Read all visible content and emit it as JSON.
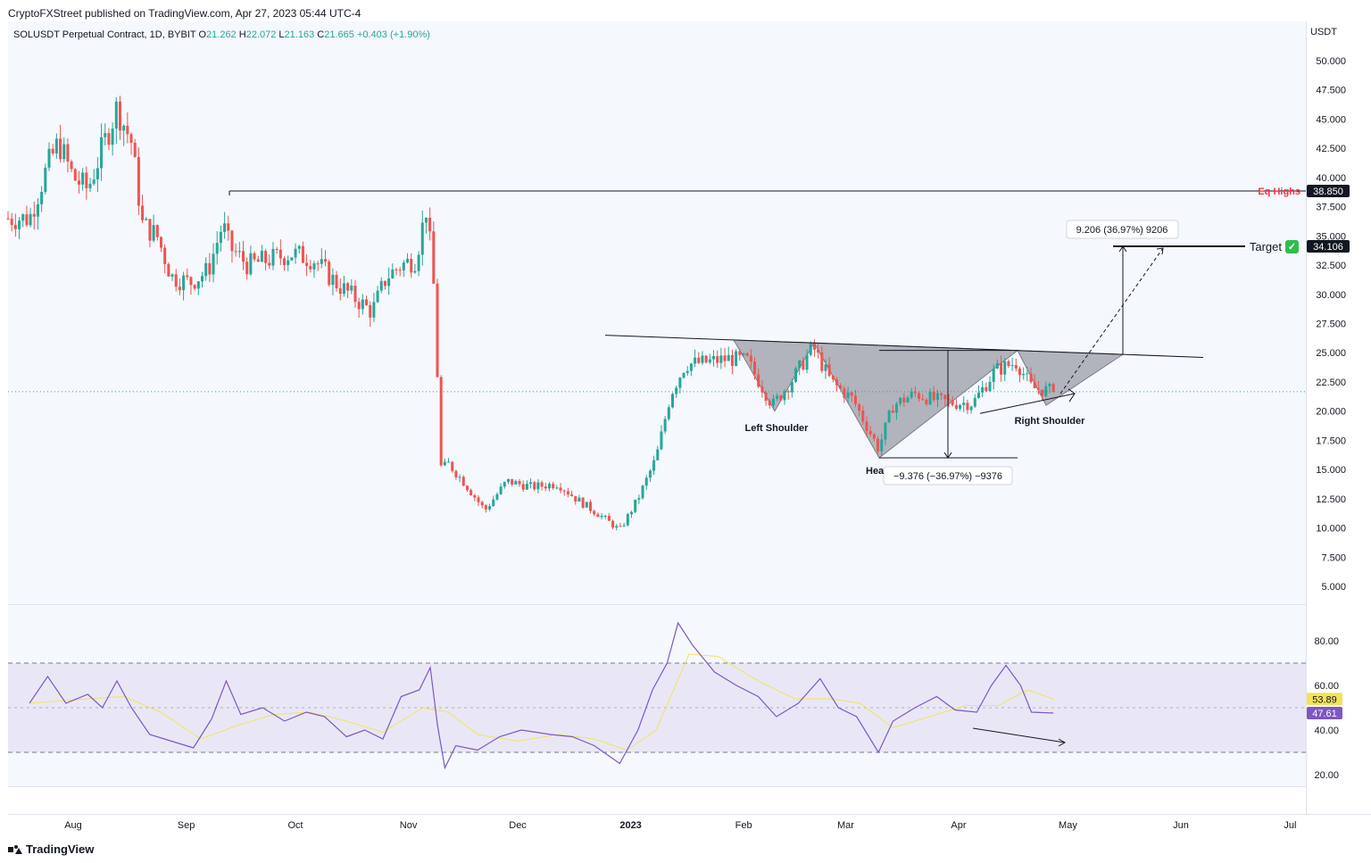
{
  "header": {
    "publisher_line": "CryptoFXStreet published on TradingView.com, Apr 27, 2023 05:44 UTC-4"
  },
  "legend": {
    "symbol": "SOLUSDT Perpetual Contract, 1D, BYBIT",
    "open_label": "O",
    "open": "21.262",
    "high_label": "H",
    "high": "22.072",
    "low_label": "L",
    "low": "21.163",
    "close_label": "C",
    "close": "21.665",
    "change": "+0.403 (+1.90%)"
  },
  "currency": "USDT",
  "labels": {
    "eq_highs": "Eq Highs",
    "eq_highs_price": "38.850",
    "target": "Target",
    "target_check": "✅",
    "target_price": "34.106",
    "measure_up": "9.206 (36.97%) 9206",
    "measure_down": "−9.376 (−36.97%) −9376",
    "left_shoulder": "Left Shoulder",
    "head": "Hea",
    "right_shoulder": "Right Shoulder",
    "rsi_value": "47.61",
    "rsi_ma_value": "53.89"
  },
  "colors": {
    "up": "#26a69a",
    "down": "#ef5350",
    "rsi": "#7e57c2",
    "rsi_ma": "#f2e35b",
    "eq_highs": "#f23645",
    "target_check": "#2ebd4e"
  },
  "footer": {
    "brand": "TradingView"
  },
  "chart_data": [
    {
      "type": "candlestick",
      "title": "SOLUSDT Perpetual Contract, 1D, BYBIT",
      "y_axis_label": "USDT",
      "x_ticks": [
        "Aug",
        "Sep",
        "Oct",
        "Nov",
        "Dec",
        "2023",
        "Feb",
        "Mar",
        "Apr",
        "May",
        "Jun",
        "Jul"
      ],
      "y_ticks": [
        "50.000",
        "47.500",
        "45.000",
        "42.500",
        "40.000",
        "37.500",
        "35.000",
        "32.500",
        "30.000",
        "27.500",
        "25.000",
        "22.500",
        "20.000",
        "17.500",
        "15.000",
        "12.500",
        "10.000",
        "7.500",
        "5.000"
      ],
      "ylim": [
        2.5,
        52.5
      ],
      "last_close": 21.665,
      "key_levels": {
        "eq_highs": 38.85,
        "target": 34.106,
        "neckline_start": 26.5,
        "neckline_end": 24.6,
        "head_low": 16.0
      },
      "approx_closes": [
        {
          "date": "2022-07-20",
          "close": 36.5
        },
        {
          "date": "2022-07-25",
          "close": 41.0
        },
        {
          "date": "2022-07-28",
          "close": 43.0
        },
        {
          "date": "2022-08-01",
          "close": 40.0
        },
        {
          "date": "2022-08-05",
          "close": 39.0
        },
        {
          "date": "2022-08-09",
          "close": 42.5
        },
        {
          "date": "2022-08-13",
          "close": 46.0
        },
        {
          "date": "2022-08-17",
          "close": 43.0
        },
        {
          "date": "2022-08-20",
          "close": 36.0
        },
        {
          "date": "2022-08-24",
          "close": 35.0
        },
        {
          "date": "2022-08-28",
          "close": 31.5
        },
        {
          "date": "2022-09-02",
          "close": 31.0
        },
        {
          "date": "2022-09-07",
          "close": 32.0
        },
        {
          "date": "2022-09-11",
          "close": 36.0
        },
        {
          "date": "2022-09-13",
          "close": 34.0
        },
        {
          "date": "2022-09-18",
          "close": 32.5
        },
        {
          "date": "2022-09-24",
          "close": 33.0
        },
        {
          "date": "2022-09-30",
          "close": 33.5
        },
        {
          "date": "2022-10-06",
          "close": 33.0
        },
        {
          "date": "2022-10-12",
          "close": 31.0
        },
        {
          "date": "2022-10-18",
          "close": 29.5
        },
        {
          "date": "2022-10-22",
          "close": 28.5
        },
        {
          "date": "2022-10-26",
          "close": 31.5
        },
        {
          "date": "2022-10-30",
          "close": 32.5
        },
        {
          "date": "2022-11-03",
          "close": 33.0
        },
        {
          "date": "2022-11-06",
          "close": 37.5
        },
        {
          "date": "2022-11-08",
          "close": 30.5
        },
        {
          "date": "2022-11-10",
          "close": 15.0
        },
        {
          "date": "2022-11-12",
          "close": 15.5
        },
        {
          "date": "2022-11-16",
          "close": 14.0
        },
        {
          "date": "2022-11-22",
          "close": 11.5
        },
        {
          "date": "2022-11-28",
          "close": 14.0
        },
        {
          "date": "2022-12-05",
          "close": 13.5
        },
        {
          "date": "2022-12-12",
          "close": 13.8
        },
        {
          "date": "2022-12-17",
          "close": 12.5
        },
        {
          "date": "2022-12-24",
          "close": 11.0
        },
        {
          "date": "2022-12-29",
          "close": 9.8
        },
        {
          "date": "2023-01-03",
          "close": 12.5
        },
        {
          "date": "2023-01-08",
          "close": 16.0
        },
        {
          "date": "2023-01-12",
          "close": 21.5
        },
        {
          "date": "2023-01-16",
          "close": 24.0
        },
        {
          "date": "2023-01-22",
          "close": 24.2
        },
        {
          "date": "2023-01-28",
          "close": 24.5
        },
        {
          "date": "2023-02-02",
          "close": 24.3
        },
        {
          "date": "2023-02-09",
          "close": 20.5
        },
        {
          "date": "2023-02-15",
          "close": 23.0
        },
        {
          "date": "2023-02-20",
          "close": 25.5
        },
        {
          "date": "2023-02-25",
          "close": 22.5
        },
        {
          "date": "2023-03-03",
          "close": 21.0
        },
        {
          "date": "2023-03-10",
          "close": 16.8
        },
        {
          "date": "2023-03-14",
          "close": 20.5
        },
        {
          "date": "2023-03-20",
          "close": 21.5
        },
        {
          "date": "2023-03-25",
          "close": 21.0
        },
        {
          "date": "2023-03-30",
          "close": 20.7
        },
        {
          "date": "2023-04-05",
          "close": 20.7
        },
        {
          "date": "2023-04-11",
          "close": 23.5
        },
        {
          "date": "2023-04-17",
          "close": 24.2
        },
        {
          "date": "2023-04-21",
          "close": 22.0
        },
        {
          "date": "2023-04-27",
          "close": 21.665
        }
      ]
    },
    {
      "type": "line",
      "title": "RSI",
      "y_ticks": [
        "80.00",
        "60.00",
        "40.00",
        "20.00"
      ],
      "ylim": [
        15,
        87
      ],
      "bands": {
        "upper": 70,
        "middle": 50,
        "lower": 30
      },
      "series": [
        {
          "name": "",
          "last_value": 47.61,
          "color": "#7e57c2",
          "values": [
            {
              "date": "2022-07-20",
              "value": 52
            },
            {
              "date": "2022-07-25",
              "value": 64
            },
            {
              "date": "2022-07-30",
              "value": 52
            },
            {
              "date": "2022-08-05",
              "value": 56
            },
            {
              "date": "2022-08-09",
              "value": 50
            },
            {
              "date": "2022-08-13",
              "value": 62
            },
            {
              "date": "2022-08-17",
              "value": 50
            },
            {
              "date": "2022-08-22",
              "value": 38
            },
            {
              "date": "2022-08-28",
              "value": 35
            },
            {
              "date": "2022-09-03",
              "value": 32
            },
            {
              "date": "2022-09-08",
              "value": 45
            },
            {
              "date": "2022-09-12",
              "value": 62
            },
            {
              "date": "2022-09-16",
              "value": 47
            },
            {
              "date": "2022-09-22",
              "value": 50
            },
            {
              "date": "2022-09-28",
              "value": 44
            },
            {
              "date": "2022-10-04",
              "value": 48
            },
            {
              "date": "2022-10-09",
              "value": 46
            },
            {
              "date": "2022-10-15",
              "value": 37
            },
            {
              "date": "2022-10-20",
              "value": 40
            },
            {
              "date": "2022-10-25",
              "value": 36
            },
            {
              "date": "2022-10-30",
              "value": 55
            },
            {
              "date": "2022-11-04",
              "value": 58
            },
            {
              "date": "2022-11-07",
              "value": 68
            },
            {
              "date": "2022-11-09",
              "value": 42
            },
            {
              "date": "2022-11-11",
              "value": 23
            },
            {
              "date": "2022-11-14",
              "value": 33
            },
            {
              "date": "2022-11-20",
              "value": 31
            },
            {
              "date": "2022-11-26",
              "value": 37
            },
            {
              "date": "2022-12-02",
              "value": 40
            },
            {
              "date": "2022-12-10",
              "value": 38
            },
            {
              "date": "2022-12-16",
              "value": 37
            },
            {
              "date": "2022-12-22",
              "value": 33
            },
            {
              "date": "2022-12-29",
              "value": 25
            },
            {
              "date": "2023-01-03",
              "value": 40
            },
            {
              "date": "2023-01-07",
              "value": 58
            },
            {
              "date": "2023-01-11",
              "value": 70
            },
            {
              "date": "2023-01-14",
              "value": 88
            },
            {
              "date": "2023-01-18",
              "value": 78
            },
            {
              "date": "2023-01-24",
              "value": 66
            },
            {
              "date": "2023-01-30",
              "value": 60
            },
            {
              "date": "2023-02-05",
              "value": 55
            },
            {
              "date": "2023-02-10",
              "value": 46
            },
            {
              "date": "2023-02-16",
              "value": 52
            },
            {
              "date": "2023-02-22",
              "value": 63
            },
            {
              "date": "2023-02-27",
              "value": 50
            },
            {
              "date": "2023-03-04",
              "value": 46
            },
            {
              "date": "2023-03-10",
              "value": 30
            },
            {
              "date": "2023-03-14",
              "value": 44
            },
            {
              "date": "2023-03-20",
              "value": 50
            },
            {
              "date": "2023-03-26",
              "value": 55
            },
            {
              "date": "2023-03-31",
              "value": 49
            },
            {
              "date": "2023-04-06",
              "value": 48
            },
            {
              "date": "2023-04-10",
              "value": 60
            },
            {
              "date": "2023-04-14",
              "value": 69
            },
            {
              "date": "2023-04-18",
              "value": 60
            },
            {
              "date": "2023-04-21",
              "value": 48
            },
            {
              "date": "2023-04-27",
              "value": 47.61
            }
          ]
        },
        {
          "name": "",
          "last_value": 53.89,
          "color": "#f2e35b",
          "values": [
            {
              "date": "2022-07-20",
              "value": 52
            },
            {
              "date": "2022-08-05",
              "value": 54
            },
            {
              "date": "2022-08-15",
              "value": 55
            },
            {
              "date": "2022-08-25",
              "value": 48
            },
            {
              "date": "2022-09-05",
              "value": 36
            },
            {
              "date": "2022-09-15",
              "value": 42
            },
            {
              "date": "2022-09-25",
              "value": 47
            },
            {
              "date": "2022-10-05",
              "value": 48
            },
            {
              "date": "2022-10-15",
              "value": 44
            },
            {
              "date": "2022-10-25",
              "value": 39
            },
            {
              "date": "2022-11-05",
              "value": 50
            },
            {
              "date": "2022-11-12",
              "value": 48
            },
            {
              "date": "2022-11-20",
              "value": 38
            },
            {
              "date": "2022-12-01",
              "value": 35
            },
            {
              "date": "2022-12-12",
              "value": 38
            },
            {
              "date": "2022-12-22",
              "value": 36
            },
            {
              "date": "2022-12-31",
              "value": 31
            },
            {
              "date": "2023-01-08",
              "value": 40
            },
            {
              "date": "2023-01-17",
              "value": 74
            },
            {
              "date": "2023-01-25",
              "value": 73
            },
            {
              "date": "2023-02-05",
              "value": 62
            },
            {
              "date": "2023-02-15",
              "value": 54
            },
            {
              "date": "2023-02-25",
              "value": 54
            },
            {
              "date": "2023-03-05",
              "value": 52
            },
            {
              "date": "2023-03-14",
              "value": 41
            },
            {
              "date": "2023-03-24",
              "value": 46
            },
            {
              "date": "2023-04-03",
              "value": 51
            },
            {
              "date": "2023-04-12",
              "value": 51
            },
            {
              "date": "2023-04-20",
              "value": 58
            },
            {
              "date": "2023-04-27",
              "value": 53.89
            }
          ]
        }
      ]
    }
  ]
}
